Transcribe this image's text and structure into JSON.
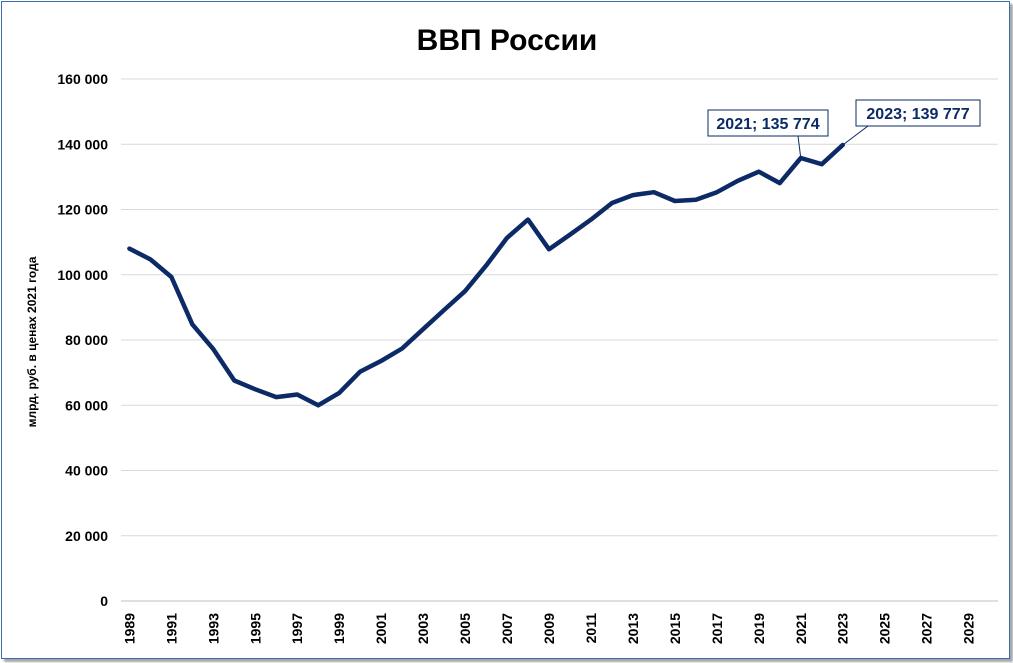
{
  "chart_data": {
    "type": "line",
    "title": "ВВП России",
    "xlabel": "",
    "ylabel": "млрд. руб. в ценах 2021 года",
    "xlim": [
      1988.6,
      2030.4
    ],
    "ylim": [
      0,
      160000
    ],
    "y_ticks": [
      0,
      20000,
      40000,
      60000,
      80000,
      100000,
      120000,
      140000,
      160000
    ],
    "y_tick_labels": [
      "0",
      "20 000",
      "40 000",
      "60 000",
      "80 000",
      "100 000",
      "120 000",
      "140 000",
      "160 000"
    ],
    "x_tick_labels": [
      "1989",
      "1991",
      "1993",
      "1995",
      "1997",
      "1999",
      "2001",
      "2003",
      "2005",
      "2007",
      "2009",
      "2011",
      "2013",
      "2015",
      "2017",
      "2019",
      "2021",
      "2023",
      "2025",
      "2027",
      "2029"
    ],
    "grid": true,
    "line_color": "#0b2a66",
    "series": [
      {
        "x": [
          1989,
          1990,
          1991,
          1992,
          1993,
          1994,
          1995,
          1996,
          1997,
          1998,
          1999,
          2000,
          2001,
          2002,
          2003,
          2004,
          2005,
          2006,
          2007,
          2008,
          2009,
          2010,
          2011,
          2012,
          2013,
          2014,
          2015,
          2016,
          2017,
          2018,
          2019,
          2020,
          2021,
          2022,
          2023
        ],
        "values": [
          108000,
          104700,
          99300,
          84800,
          77200,
          67600,
          64900,
          62500,
          63300,
          60000,
          63800,
          70300,
          73600,
          77400,
          83300,
          89200,
          95000,
          102800,
          111300,
          116900,
          107800,
          112300,
          116900,
          122000,
          124400,
          125300,
          122600,
          123000,
          125300,
          128800,
          131600,
          128100,
          135774,
          133900,
          139777
        ]
      }
    ],
    "annotations": [
      {
        "x": 2021,
        "y": 135774,
        "text": "2021; 135 774"
      },
      {
        "x": 2023,
        "y": 139777,
        "text": "2023; 139 777"
      }
    ]
  }
}
